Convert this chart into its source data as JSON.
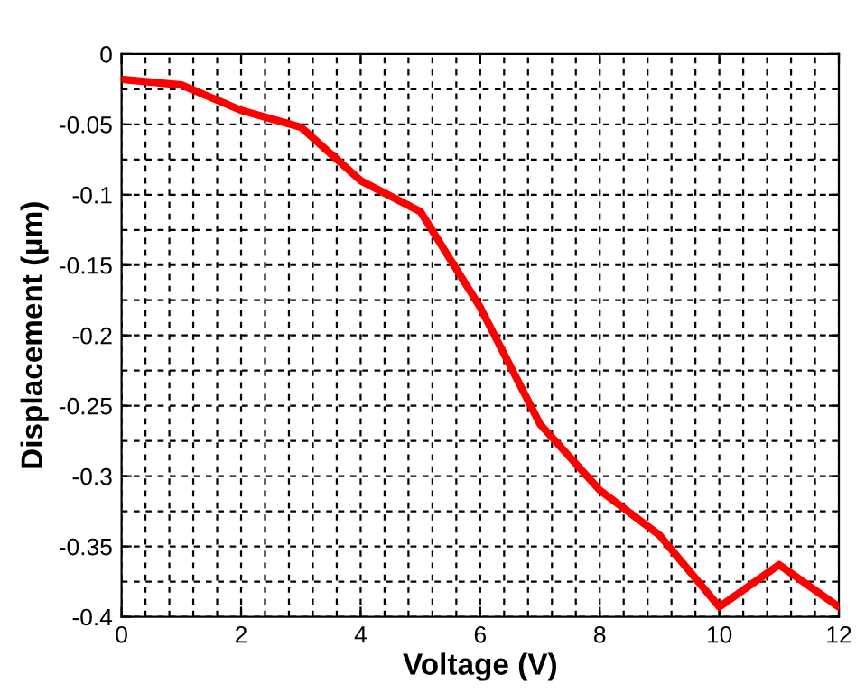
{
  "chart_data": {
    "type": "line",
    "xlabel": "Voltage (V)",
    "ylabel": "Displacement (μm)",
    "x": [
      0,
      1,
      2,
      3,
      4,
      5,
      6,
      7,
      8,
      9,
      10,
      11,
      12
    ],
    "series": [
      {
        "color": "#ff0000",
        "values": [
          -0.018,
          -0.022,
          -0.04,
          -0.052,
          -0.09,
          -0.112,
          -0.18,
          -0.263,
          -0.31,
          -0.342,
          -0.393,
          -0.363,
          -0.393
        ]
      }
    ],
    "xlim": [
      0,
      12
    ],
    "xticks": [
      0,
      2,
      4,
      6,
      8,
      10,
      12
    ],
    "ylim": [
      -0.4,
      0
    ],
    "yticks": [
      {
        "value": -0.4,
        "label": "-0.4"
      },
      {
        "value": -0.35,
        "label": "-0.35"
      },
      {
        "value": -0.3,
        "label": "-0.3"
      },
      {
        "value": -0.25,
        "label": "-0.25"
      },
      {
        "value": -0.2,
        "label": "-0.2"
      },
      {
        "value": -0.15,
        "label": "-0.15"
      },
      {
        "value": -0.1,
        "label": "-0.1"
      },
      {
        "value": -0.05,
        "label": "-0.05"
      },
      0
    ],
    "grid": true,
    "line_style": "solid",
    "marker": "none"
  }
}
